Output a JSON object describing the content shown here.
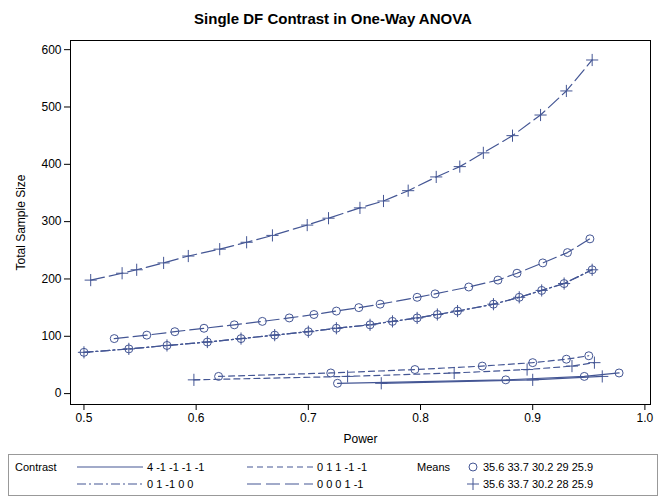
{
  "chart_data": {
    "type": "line",
    "title": "Single DF Contrast in One-Way ANOVA",
    "x_label": "Power",
    "y_label": "Total Sample Size",
    "xlim": [
      0.488,
      1.005
    ],
    "ylim": [
      -19,
      616
    ],
    "xticks": [
      0.5,
      0.6,
      0.7,
      0.8,
      0.9,
      {
        "value": 1,
        "label": "1.0"
      }
    ],
    "yticks": [
      0,
      100,
      200,
      300,
      400,
      500,
      600
    ],
    "grid": false,
    "legend": "bottom",
    "legend_groups": [
      {
        "title": "Contrast",
        "entries": [
          {
            "label": "4 -1 -1 -1 -1",
            "line_style": "solid"
          },
          {
            "label": "0 1 1 -1 -1",
            "line_style": "dashed"
          },
          {
            "label": "0 1 -1 0 0",
            "line_style": "dashdot"
          },
          {
            "label": "0 0 0 1 -1",
            "line_style": "longdash"
          }
        ]
      },
      {
        "title": "Means",
        "entries": [
          {
            "label": "35.6 33.7 30.2 29 25.9",
            "marker": "circle"
          },
          {
            "label": "35.6 33.7 30.2 28 25.9",
            "marker": "plus"
          }
        ]
      }
    ],
    "series": [
      {
        "contrast": "4 -1 -1 -1 -1",
        "means": "35.6 33.7 30.2 29 25.9",
        "line_style": "solid",
        "marker": "circle",
        "color": "#445694",
        "x": [
          0.726,
          0.876,
          0.946,
          0.977
        ],
        "values": [
          18,
          24,
          30,
          36
        ]
      },
      {
        "contrast": "4 -1 -1 -1 -1",
        "means": "35.6 33.7 30.2 28 25.9",
        "line_style": "solid",
        "marker": "plus",
        "color": "#445694",
        "x": [
          0.765,
          0.9,
          0.962
        ],
        "values": [
          18,
          24,
          30
        ]
      },
      {
        "contrast": "0 1 1 -1 -1",
        "means": "35.6 33.7 30.2 29 25.9",
        "line_style": "dashed",
        "marker": "circle",
        "color": "#445694",
        "x": [
          0.62,
          0.72,
          0.795,
          0.855,
          0.9,
          0.93,
          0.95
        ],
        "values": [
          30,
          36,
          42,
          48,
          54,
          60,
          66
        ]
      },
      {
        "contrast": "0 1 1 -1 -1",
        "means": "35.6 33.7 30.2 28 25.9",
        "line_style": "dashed",
        "marker": "plus",
        "color": "#445694",
        "x": [
          0.598,
          0.735,
          0.83,
          0.895,
          0.935,
          0.955
        ],
        "values": [
          24,
          30,
          36,
          42,
          48,
          54
        ]
      },
      {
        "contrast": "0 1 -1 0 0",
        "means": "35.6 33.7 30.2 29 25.9",
        "line_style": "dashdot",
        "marker": "circle",
        "color": "#445694",
        "x": [
          0.5,
          0.54,
          0.574,
          0.61,
          0.64,
          0.67,
          0.7,
          0.725,
          0.755,
          0.775,
          0.797,
          0.815,
          0.833,
          0.865,
          0.888,
          0.908,
          0.928,
          0.953
        ],
        "values": [
          72,
          78,
          84,
          90,
          96,
          102,
          108,
          114,
          120,
          126,
          132,
          138,
          144,
          156,
          168,
          180,
          192,
          216
        ]
      },
      {
        "contrast": "0 1 -1 0 0",
        "means": "35.6 33.7 30.2 28 25.9",
        "line_style": "dashdot",
        "marker": "plus",
        "color": "#445694",
        "x": [
          0.5,
          0.54,
          0.574,
          0.61,
          0.64,
          0.67,
          0.7,
          0.725,
          0.755,
          0.775,
          0.797,
          0.815,
          0.833,
          0.865,
          0.888,
          0.908,
          0.928,
          0.953
        ],
        "values": [
          72,
          78,
          84,
          90,
          96,
          102,
          108,
          114,
          120,
          126,
          132,
          138,
          144,
          156,
          168,
          180,
          192,
          216
        ]
      },
      {
        "contrast": "0 0 0 1 -1",
        "means": "35.6 33.7 30.2 29 25.9",
        "line_style": "longdash",
        "marker": "circle",
        "color": "#445694",
        "x": [
          0.527,
          0.556,
          0.581,
          0.607,
          0.634,
          0.659,
          0.683,
          0.705,
          0.725,
          0.745,
          0.764,
          0.797,
          0.813,
          0.843,
          0.869,
          0.886,
          0.909,
          0.931,
          0.951
        ],
        "values": [
          96,
          102,
          108,
          114,
          120,
          126,
          132,
          138,
          144,
          150,
          156,
          168,
          174,
          186,
          198,
          210,
          228,
          246,
          270
        ]
      },
      {
        "contrast": "0 0 0 1 -1",
        "means": "35.6 33.7 30.2 28 25.9",
        "line_style": "longdash",
        "marker": "plus",
        "color": "#445694",
        "x": [
          0.506,
          0.534,
          0.547,
          0.571,
          0.593,
          0.621,
          0.645,
          0.668,
          0.699,
          0.718,
          0.746,
          0.767,
          0.789,
          0.814,
          0.835,
          0.856,
          0.882,
          0.907,
          0.93,
          0.953
        ],
        "values": [
          198,
          210,
          216,
          228,
          240,
          252,
          264,
          276,
          294,
          306,
          324,
          336,
          354,
          378,
          396,
          420,
          450,
          486,
          528,
          582
        ]
      }
    ]
  }
}
